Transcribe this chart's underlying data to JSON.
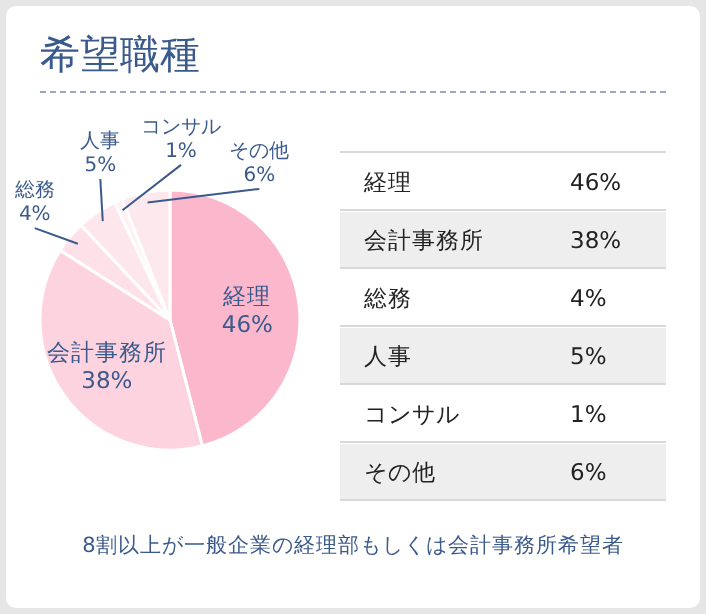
{
  "chart_data": {
    "type": "pie",
    "title": "希望職種",
    "categories": [
      "経理",
      "会計事務所",
      "総務",
      "人事",
      "コンサル",
      "その他"
    ],
    "values": [
      46,
      38,
      4,
      5,
      1,
      6
    ],
    "value_labels": [
      "46%",
      "38%",
      "4%",
      "5%",
      "1%",
      "6%"
    ],
    "colors": [
      "#fbb8cc",
      "#fcd3df",
      "#fde0e8",
      "#fde6ec",
      "#fef0f3",
      "#fde8ee"
    ],
    "data_labels": true,
    "annotations": [
      "8割以上が一般企業の経理部もしくは会計事務所希望者"
    ]
  }
}
